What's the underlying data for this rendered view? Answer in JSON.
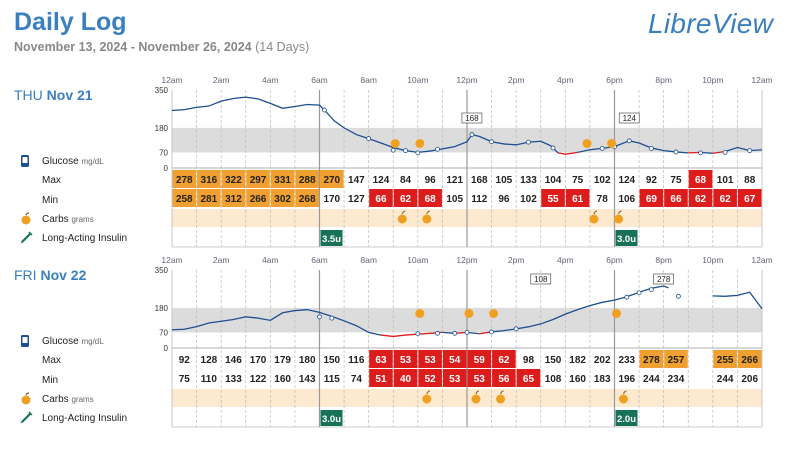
{
  "header": {
    "title": "Daily Log",
    "date_range": "November 13, 2024 - November 26, 2024",
    "days_note": "(14 Days)",
    "logo": "LibreView"
  },
  "time_labels": [
    "12am",
    "2am",
    "4am",
    "6am",
    "8am",
    "10am",
    "12pm",
    "2pm",
    "4pm",
    "6pm",
    "8pm",
    "10pm",
    "12am"
  ],
  "y_ticks": [
    "350",
    "180",
    "70",
    "0"
  ],
  "legend": {
    "glucose": "Glucose",
    "glucose_unit": "mg/dL",
    "max": "Max",
    "min": "Min",
    "carbs": "Carbs",
    "carbs_unit": "grams",
    "insulin": "Long-Acting Insulin"
  },
  "colors": {
    "accent": "#3a7fbf",
    "high": "#f0a030",
    "low": "#dd1c1c",
    "target_band": "#dcdcdc",
    "carb_band": "#fde9cf",
    "insulin": "#177258"
  },
  "days": [
    {
      "weekday": "THU",
      "date": "Nov 21",
      "max": [
        "278",
        "316",
        "322",
        "297",
        "331",
        "288",
        "270",
        "147",
        "124",
        "84",
        "96",
        "121",
        "168",
        "105",
        "133",
        "104",
        "75",
        "102",
        "124",
        "92",
        "75",
        "68",
        "101",
        "88"
      ],
      "min": [
        "258",
        "281",
        "312",
        "266",
        "302",
        "268",
        "170",
        "127",
        "66",
        "62",
        "68",
        "105",
        "112",
        "96",
        "102",
        "55",
        "61",
        "78",
        "106",
        "69",
        "66",
        "62",
        "62",
        "67"
      ],
      "carbs_hours": [
        9,
        10,
        16.8,
        17.8
      ],
      "insulin": [
        {
          "hour": 6,
          "label": "3.5u"
        },
        {
          "hour": 18,
          "label": "3.0u"
        }
      ],
      "callouts": [
        {
          "hour": 12.2,
          "value": "168"
        },
        {
          "hour": 18.6,
          "value": "124"
        }
      ],
      "trace": [
        [
          0,
          258
        ],
        [
          0.5,
          262
        ],
        [
          1,
          272
        ],
        [
          1.5,
          278
        ],
        [
          2,
          300
        ],
        [
          2.5,
          312
        ],
        [
          3,
          318
        ],
        [
          3.5,
          310
        ],
        [
          4,
          290
        ],
        [
          4.5,
          268
        ],
        [
          5,
          276
        ],
        [
          5.5,
          285
        ],
        [
          6,
          282
        ],
        [
          6.2,
          260
        ],
        [
          6.6,
          212
        ],
        [
          7,
          180
        ],
        [
          7.5,
          150
        ],
        [
          8,
          132
        ],
        [
          8.5,
          112
        ],
        [
          9,
          92
        ],
        [
          9.5,
          78
        ],
        [
          10,
          70
        ],
        [
          10.5,
          76
        ],
        [
          11,
          86
        ],
        [
          11.5,
          96
        ],
        [
          12,
          118
        ],
        [
          12.2,
          150
        ],
        [
          12.5,
          142
        ],
        [
          13,
          118
        ],
        [
          13.5,
          108
        ],
        [
          14,
          104
        ],
        [
          14.5,
          116
        ],
        [
          15,
          120
        ],
        [
          15.4,
          100
        ],
        [
          15.7,
          68
        ],
        [
          16,
          62
        ],
        [
          16.5,
          70
        ],
        [
          17,
          82
        ],
        [
          17.5,
          88
        ],
        [
          18,
          96
        ],
        [
          18.6,
          122
        ],
        [
          19,
          112
        ],
        [
          19.5,
          90
        ],
        [
          20,
          78
        ],
        [
          20.5,
          72
        ],
        [
          21,
          68
        ],
        [
          21.5,
          70
        ],
        [
          22,
          66
        ],
        [
          22.5,
          74
        ],
        [
          23,
          92
        ],
        [
          23.5,
          78
        ],
        [
          24,
          82
        ]
      ],
      "points": [
        [
          6.2,
          260
        ],
        [
          8,
          132
        ],
        [
          9,
          80
        ],
        [
          9.5,
          78
        ],
        [
          10,
          68
        ],
        [
          10.8,
          84
        ],
        [
          12.2,
          150
        ],
        [
          13,
          118
        ],
        [
          14.5,
          116
        ],
        [
          15.5,
          90
        ],
        [
          17.5,
          88
        ],
        [
          18,
          96
        ],
        [
          18.6,
          122
        ],
        [
          19.5,
          88
        ],
        [
          20.5,
          72
        ],
        [
          21.5,
          68
        ],
        [
          22.5,
          70
        ],
        [
          23.5,
          78
        ]
      ]
    },
    {
      "weekday": "FRI",
      "date": "Nov 22",
      "max": [
        "92",
        "128",
        "146",
        "170",
        "179",
        "180",
        "150",
        "116",
        "63",
        "53",
        "53",
        "54",
        "59",
        "62",
        "98",
        "150",
        "182",
        "202",
        "233",
        "278",
        "257",
        "",
        "255",
        "266"
      ],
      "min": [
        "75",
        "110",
        "133",
        "122",
        "160",
        "143",
        "115",
        "74",
        "51",
        "40",
        "52",
        "53",
        "53",
        "56",
        "65",
        "108",
        "160",
        "183",
        "196",
        "244",
        "234",
        "",
        "244",
        "206"
      ],
      "carbs_hours": [
        10,
        12,
        13,
        18
      ],
      "insulin": [
        {
          "hour": 6,
          "label": "3.0u"
        },
        {
          "hour": 18,
          "label": "2.0u"
        }
      ],
      "callouts": [
        {
          "hour": 15,
          "value": "108"
        },
        {
          "hour": 20,
          "value": "278"
        }
      ],
      "trace": [
        [
          0,
          82
        ],
        [
          0.5,
          84
        ],
        [
          1,
          96
        ],
        [
          1.5,
          112
        ],
        [
          2,
          120
        ],
        [
          2.5,
          128
        ],
        [
          3,
          140
        ],
        [
          3.5,
          134
        ],
        [
          4,
          124
        ],
        [
          4.5,
          158
        ],
        [
          5,
          168
        ],
        [
          5.5,
          172
        ],
        [
          6,
          160
        ],
        [
          6.5,
          142
        ],
        [
          7,
          122
        ],
        [
          7.5,
          100
        ],
        [
          8,
          70
        ],
        [
          8.5,
          58
        ],
        [
          9,
          52
        ],
        [
          9.5,
          58
        ],
        [
          10,
          62
        ],
        [
          10.5,
          66
        ],
        [
          11,
          70
        ],
        [
          11.5,
          66
        ],
        [
          12,
          70
        ],
        [
          12.5,
          64
        ],
        [
          13,
          72
        ],
        [
          13.5,
          78
        ],
        [
          14,
          86
        ],
        [
          14.5,
          95
        ],
        [
          15,
          108
        ],
        [
          15.5,
          128
        ],
        [
          16,
          152
        ],
        [
          16.5,
          172
        ],
        [
          17,
          190
        ],
        [
          17.5,
          205
        ],
        [
          18,
          215
        ],
        [
          18.5,
          230
        ],
        [
          19,
          250
        ],
        [
          19.5,
          268
        ],
        [
          20,
          278
        ],
        [
          20.2,
          270
        ]
      ],
      "trace2": [
        [
          22,
          234
        ],
        [
          22.5,
          232
        ],
        [
          23,
          236
        ],
        [
          23.5,
          250
        ],
        [
          24,
          176
        ]
      ],
      "points": [
        [
          6,
          140
        ],
        [
          6.5,
          134
        ],
        [
          10,
          64
        ],
        [
          10.8,
          66
        ],
        [
          11.5,
          66
        ],
        [
          12,
          70
        ],
        [
          13,
          72
        ],
        [
          14,
          86
        ],
        [
          18.5,
          228
        ],
        [
          19,
          248
        ],
        [
          19.5,
          262
        ],
        [
          20.6,
          232
        ]
      ]
    }
  ]
}
